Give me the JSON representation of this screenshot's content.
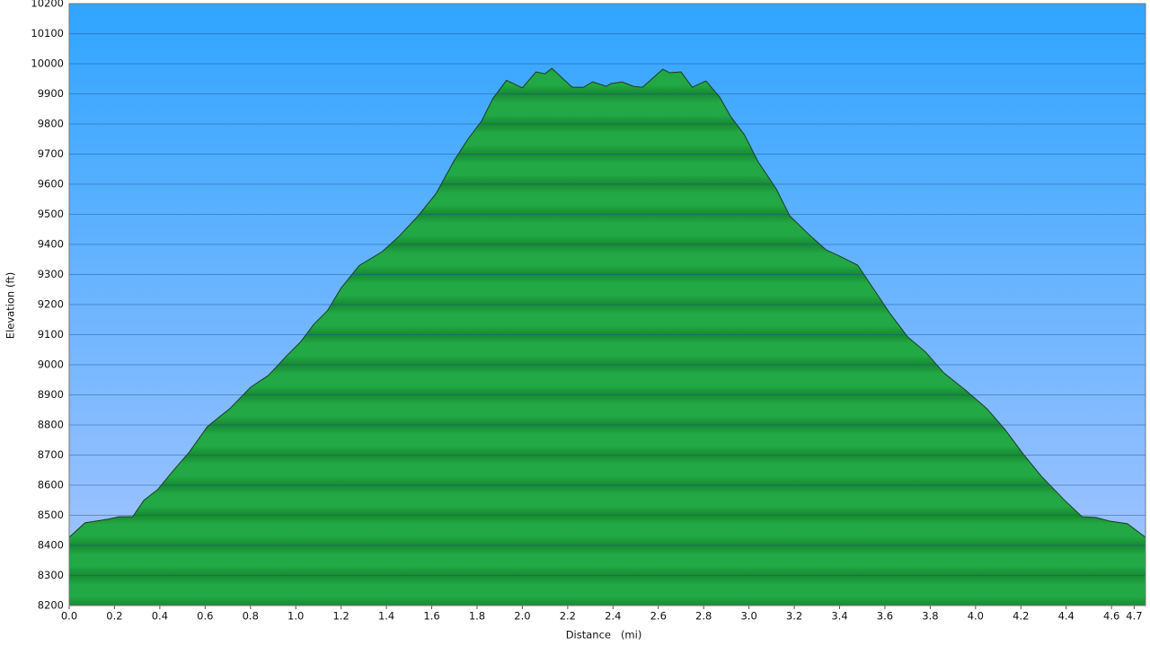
{
  "chart_data": {
    "type": "area",
    "xlabel": "Distance   (mi)",
    "ylabel": "Elevation (ft)",
    "xlim": [
      0,
      4.75
    ],
    "ylim": [
      8200,
      10200
    ],
    "xticks": [
      {
        "value": 0,
        "label": "0.0"
      },
      0.2,
      0.4,
      0.6,
      0.8,
      {
        "value": 1,
        "label": "1.0"
      },
      1.2,
      1.4,
      1.6,
      1.8,
      {
        "value": 2,
        "label": "2.0"
      },
      2.2,
      2.4,
      2.6,
      2.8,
      {
        "value": 3,
        "label": "3.0"
      },
      3.2,
      3.4,
      3.6,
      3.8,
      {
        "value": 4,
        "label": "4.0"
      },
      4.2,
      4.4,
      4.6,
      4.7
    ],
    "yticks": [
      8200,
      8300,
      8400,
      8500,
      8600,
      8700,
      8800,
      8900,
      9000,
      9100,
      9200,
      9300,
      9400,
      9500,
      9600,
      9700,
      9800,
      9900,
      10000,
      10100,
      10200
    ],
    "grid": true,
    "color": "#22a844",
    "x": [
      0,
      0.07,
      0.17,
      0.22,
      0.28,
      0.33,
      0.39,
      0.45,
      0.53,
      0.61,
      0.71,
      0.8,
      0.88,
      0.96,
      1.02,
      1.08,
      1.14,
      1.2,
      1.28,
      1.38,
      1.46,
      1.54,
      1.62,
      1.7,
      1.76,
      1.82,
      1.87,
      1.93,
      2.0,
      2.06,
      2.1,
      2.13,
      2.22,
      2.27,
      2.31,
      2.37,
      2.39,
      2.44,
      2.49,
      2.53,
      2.62,
      2.65,
      2.7,
      2.75,
      2.81,
      2.87,
      2.92,
      2.98,
      3.04,
      3.12,
      3.18,
      3.26,
      3.34,
      3.4,
      3.48,
      3.54,
      3.62,
      3.7,
      3.78,
      3.86,
      3.96,
      4.05,
      4.13,
      4.21,
      4.29,
      4.39,
      4.47,
      4.53,
      4.59,
      4.67,
      4.75
    ],
    "values": [
      8427,
      8475,
      8487,
      8495,
      8495,
      8550,
      8585,
      8640,
      8710,
      8795,
      8855,
      8925,
      8965,
      9030,
      9075,
      9135,
      9180,
      9255,
      9330,
      9375,
      9430,
      9495,
      9570,
      9680,
      9750,
      9810,
      9885,
      9945,
      9920,
      9973,
      9967,
      9985,
      9922,
      9922,
      9940,
      9925,
      9934,
      9940,
      9925,
      9922,
      9982,
      9970,
      9973,
      9922,
      9943,
      9890,
      9824,
      9764,
      9675,
      9585,
      9495,
      9436,
      9382,
      9361,
      9331,
      9263,
      9173,
      9093,
      9042,
      8973,
      8913,
      8854,
      8785,
      8704,
      8630,
      8552,
      8495,
      8493,
      8481,
      8472,
      8427
    ]
  }
}
